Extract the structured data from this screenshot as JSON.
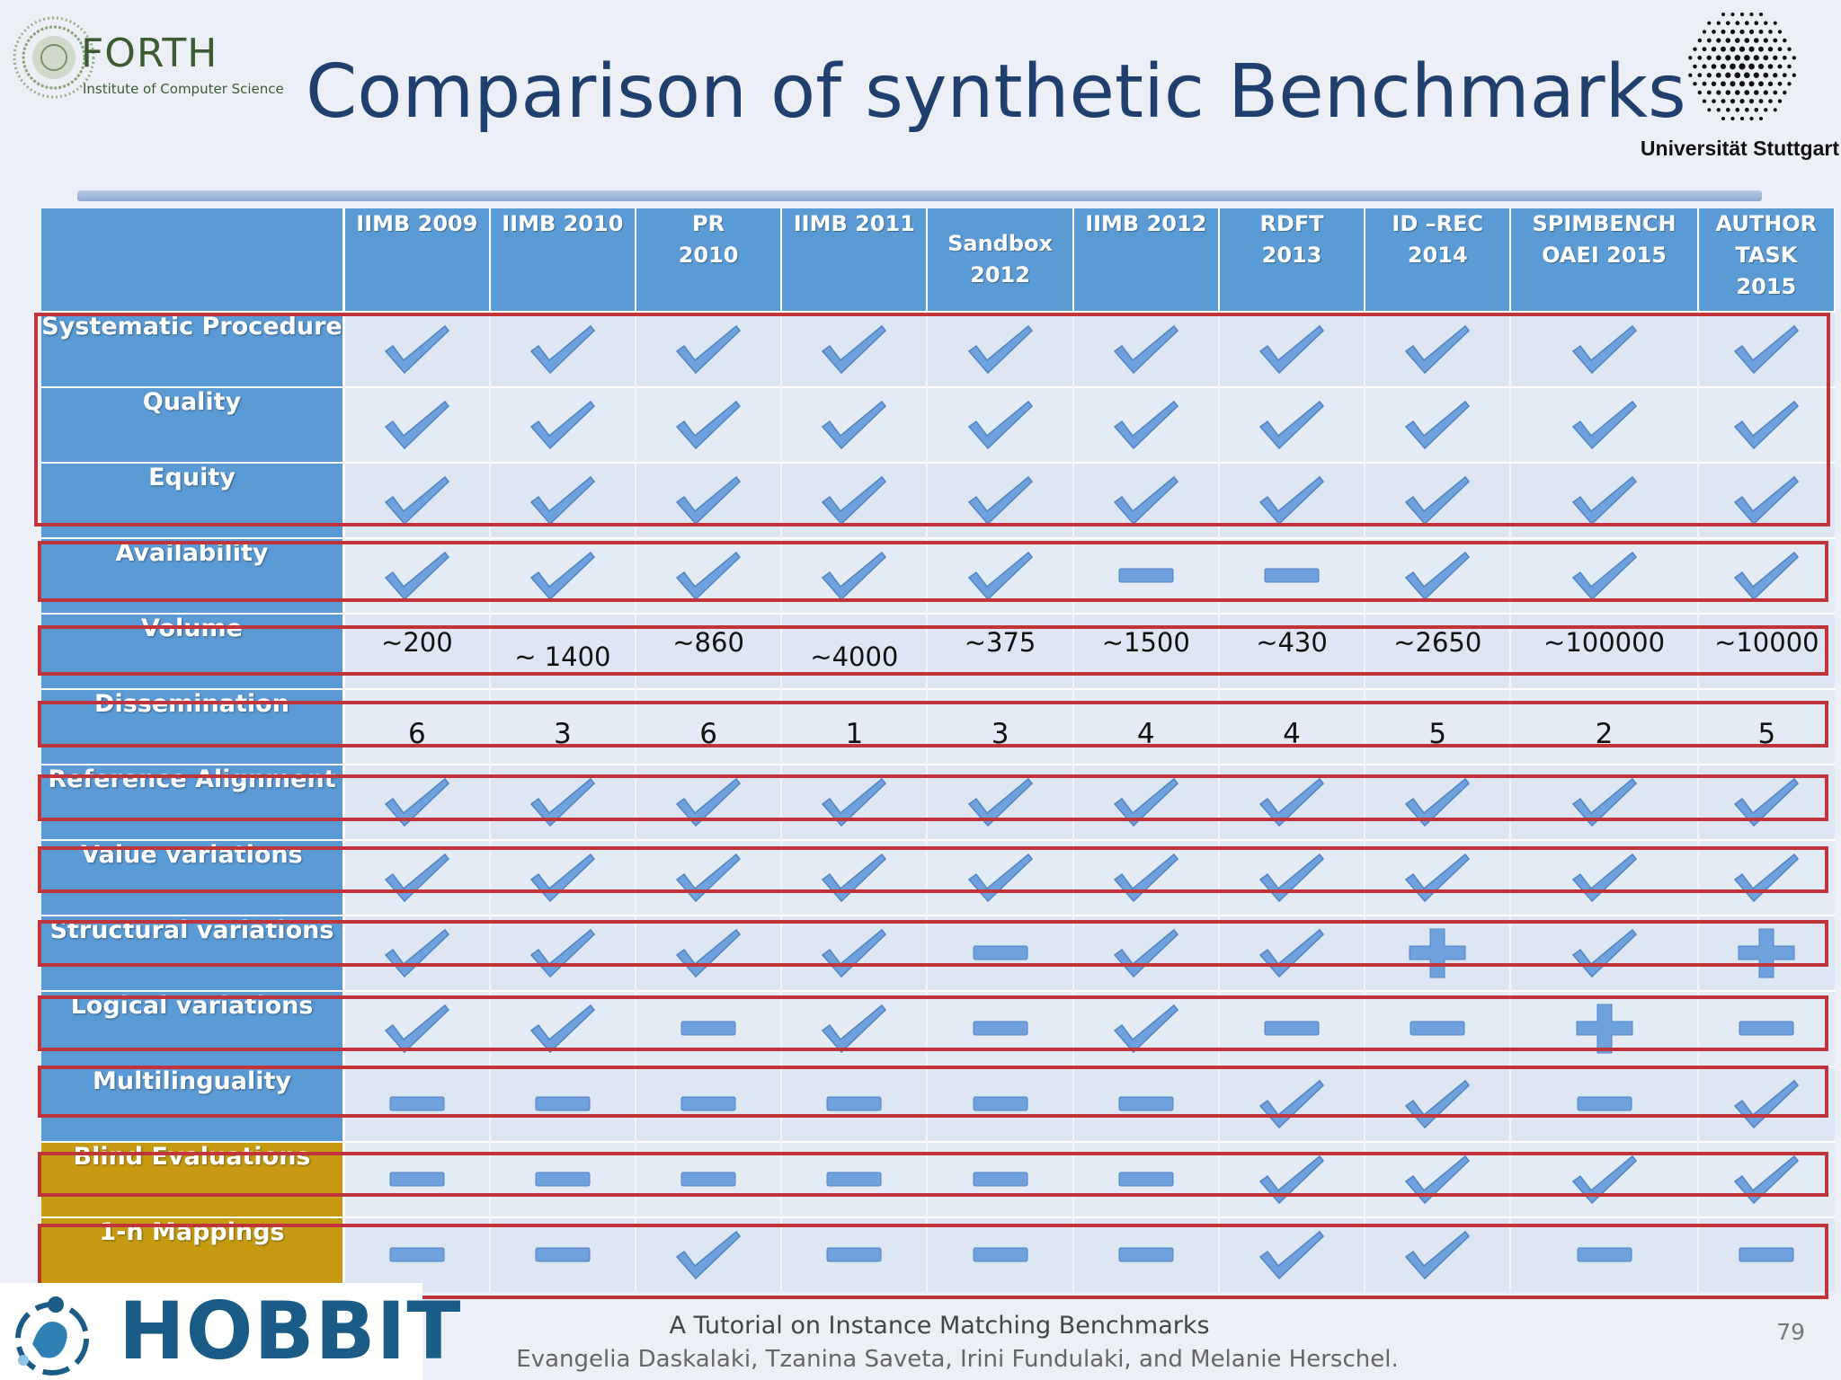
{
  "header": {
    "forth_name": "FORTH",
    "forth_subtitle": "Institute of Computer Science",
    "title": "Comparison of synthetic Benchmarks",
    "university": "Universität Stuttgart"
  },
  "table": {
    "benchmarks": [
      "IIMB 2009",
      "IIMB 2010",
      "PR\n2010",
      "IIMB 2011",
      "Sandbox\n2012",
      "IIMB 2012",
      "RDFT\n2013",
      "ID –REC\n2014",
      "SPIMBENCH\nOAEI 2015",
      "AUTHOR\nTASK\n2015"
    ],
    "criteria": [
      {
        "label": "Systematic Procedure",
        "kind": "mark",
        "values": [
          "check",
          "check",
          "check",
          "check",
          "check",
          "check",
          "check",
          "check",
          "check",
          "check"
        ]
      },
      {
        "label": "Quality",
        "kind": "mark",
        "values": [
          "check",
          "check",
          "check",
          "check",
          "check",
          "check",
          "check",
          "check",
          "check",
          "check"
        ]
      },
      {
        "label": "Equity",
        "kind": "mark",
        "values": [
          "check",
          "check",
          "check",
          "check",
          "check",
          "check",
          "check",
          "check",
          "check",
          "check"
        ]
      },
      {
        "label": "Availability",
        "kind": "mark",
        "values": [
          "check",
          "check",
          "check",
          "check",
          "check",
          "minus",
          "minus",
          "check",
          "check",
          "check"
        ]
      },
      {
        "label": "Volume",
        "kind": "text",
        "values": [
          "~200",
          "~ 1400",
          "~860",
          "~4000",
          "~375",
          "~1500",
          "~430",
          "~2650",
          "~100000",
          "~10000"
        ]
      },
      {
        "label": "Dissemination",
        "kind": "number",
        "values": [
          "6",
          "3",
          "6",
          "1",
          "3",
          "4",
          "4",
          "5",
          "2",
          "5"
        ]
      },
      {
        "label": "Reference Alignment",
        "kind": "mark",
        "values": [
          "check",
          "check",
          "check",
          "check",
          "check",
          "check",
          "check",
          "check",
          "check",
          "check"
        ]
      },
      {
        "label": "Value variations",
        "kind": "mark",
        "values": [
          "check",
          "check",
          "check",
          "check",
          "check",
          "check",
          "check",
          "check",
          "check",
          "check"
        ]
      },
      {
        "label": "Structural  variations",
        "kind": "mark",
        "values": [
          "check",
          "check",
          "check",
          "check",
          "minus",
          "check",
          "check",
          "plus",
          "check",
          "plus"
        ]
      },
      {
        "label": "Logical variations",
        "kind": "mark",
        "values": [
          "check",
          "check",
          "minus",
          "check",
          "minus",
          "check",
          "minus",
          "minus",
          "plus",
          "minus"
        ]
      },
      {
        "label": "Multilinguality",
        "kind": "mark",
        "values": [
          "minus",
          "minus",
          "minus",
          "minus",
          "minus",
          "minus",
          "check",
          "check",
          "minus",
          "check"
        ]
      },
      {
        "label": "Blind Evaluations",
        "kind": "mark",
        "gold": true,
        "values": [
          "minus",
          "minus",
          "minus",
          "minus",
          "minus",
          "minus",
          "check",
          "check",
          "check",
          "check"
        ]
      },
      {
        "label": "1-n Mappings",
        "kind": "mark",
        "gold": true,
        "values": [
          "minus",
          "minus",
          "check",
          "minus",
          "minus",
          "minus",
          "check",
          "check",
          "minus",
          "minus"
        ]
      }
    ]
  },
  "icons": {
    "check": "check-icon",
    "minus": "minus-icon",
    "plus": "plus-icon"
  },
  "colors": {
    "header_blue": "#5b9bd5",
    "gold": "#c69b12",
    "mark_blue": "#6fa2dc",
    "frame_red": "#c0353c",
    "title_navy": "#1f3f6f"
  },
  "footer": {
    "hobbit": "HOBBIT",
    "title": "A Tutorial on Instance Matching Benchmarks",
    "authors": "Evangelia Daskalaki, Tzanina Saveta, Irini Fundulaki, and Melanie Herschel.",
    "page_number": "79"
  }
}
